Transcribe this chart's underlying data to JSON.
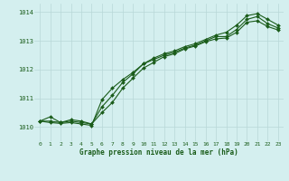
{
  "title": "Graphe pression niveau de la mer (hPa)",
  "bg_color": "#d4efef",
  "grid_color": "#b8d8d8",
  "line_color": "#1a5c1a",
  "marker_color": "#1a5c1a",
  "xlim": [
    -0.5,
    23.5
  ],
  "ylim": [
    1009.5,
    1014.3
  ],
  "xticks": [
    0,
    1,
    2,
    3,
    4,
    5,
    6,
    7,
    8,
    9,
    10,
    11,
    12,
    13,
    14,
    15,
    16,
    17,
    18,
    19,
    20,
    21,
    22,
    23
  ],
  "yticks": [
    1010,
    1011,
    1012,
    1013,
    1014
  ],
  "series1_x": [
    0,
    1,
    2,
    3,
    4,
    5,
    6,
    7,
    8,
    9,
    10,
    11,
    12,
    13,
    14,
    15,
    16,
    17,
    18,
    19,
    20,
    21,
    22,
    23
  ],
  "series1_y": [
    1010.2,
    1010.35,
    1010.15,
    1010.25,
    1010.2,
    1010.1,
    1010.7,
    1011.1,
    1011.55,
    1011.85,
    1012.2,
    1012.35,
    1012.5,
    1012.6,
    1012.75,
    1012.85,
    1013.0,
    1013.15,
    1013.15,
    1013.4,
    1013.75,
    1013.85,
    1013.6,
    1013.45
  ],
  "series2_x": [
    0,
    1,
    2,
    3,
    4,
    5,
    6,
    7,
    8,
    9,
    10,
    11,
    12,
    13,
    14,
    15,
    16,
    17,
    18,
    19,
    20,
    21,
    22,
    23
  ],
  "series2_y": [
    1010.2,
    1010.15,
    1010.12,
    1010.15,
    1010.1,
    1010.05,
    1010.95,
    1011.35,
    1011.65,
    1011.9,
    1012.2,
    1012.4,
    1012.55,
    1012.65,
    1012.8,
    1012.9,
    1013.05,
    1013.2,
    1013.3,
    1013.55,
    1013.88,
    1013.95,
    1013.75,
    1013.55
  ],
  "series3_x": [
    0,
    1,
    2,
    3,
    4,
    5,
    6,
    7,
    8,
    9,
    10,
    11,
    12,
    13,
    14,
    15,
    16,
    17,
    18,
    19,
    20,
    21,
    22,
    23
  ],
  "series3_y": [
    1010.2,
    1010.2,
    1010.15,
    1010.2,
    1010.15,
    1010.1,
    1010.5,
    1010.85,
    1011.35,
    1011.7,
    1012.05,
    1012.25,
    1012.45,
    1012.55,
    1012.72,
    1012.82,
    1012.97,
    1013.07,
    1013.1,
    1013.3,
    1013.65,
    1013.7,
    1013.5,
    1013.38
  ]
}
